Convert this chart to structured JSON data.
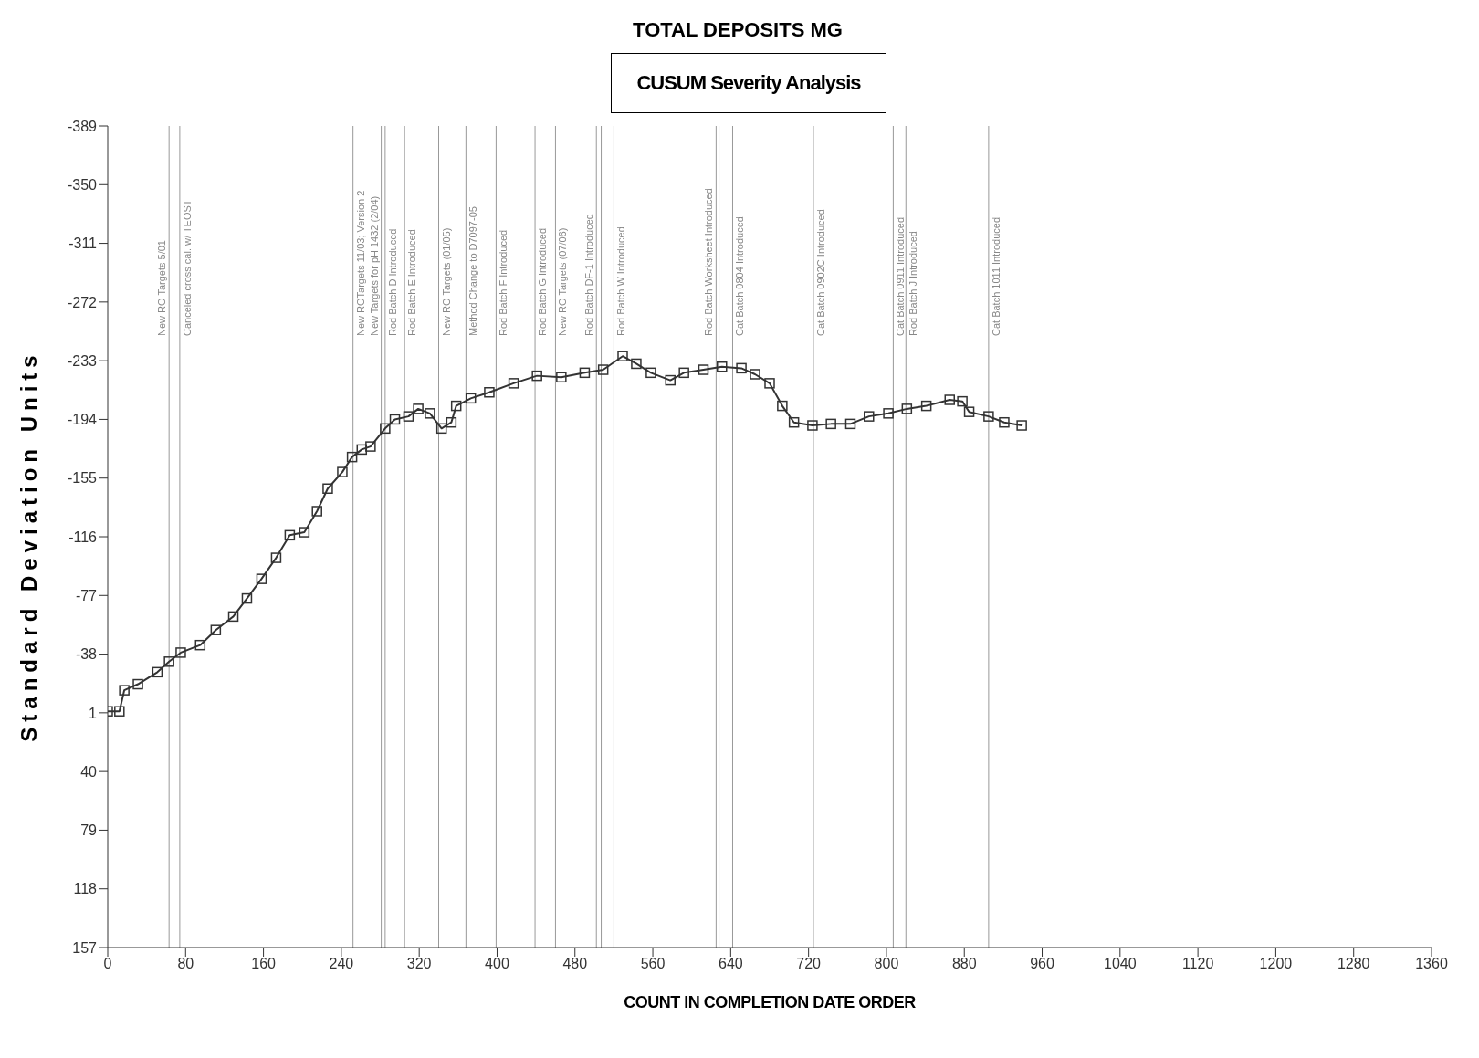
{
  "chart_data": {
    "type": "line",
    "title": "TOTAL DEPOSITS MG",
    "xlabel": "COUNT IN COMPLETION DATE ORDER",
    "ylabel": "Standard Deviation Units",
    "annotations": [
      "CUSUM Severity Analysis"
    ],
    "x": [
      0,
      12,
      17,
      31,
      51,
      63,
      75,
      95,
      111,
      129,
      143,
      158,
      173,
      187,
      202,
      215,
      226,
      241,
      251,
      261,
      270,
      285,
      295,
      309,
      319,
      331,
      343,
      353,
      358,
      373,
      392,
      417,
      441,
      466,
      490,
      509,
      529,
      543,
      558,
      578,
      592,
      612,
      631,
      651,
      665,
      680,
      693,
      705,
      724,
      743,
      763,
      782,
      802,
      821,
      841,
      865,
      878,
      885,
      905,
      921,
      939
    ],
    "series": [
      {
        "color": "#333333",
        "values": [
          0,
          0,
          -14,
          -18,
          -26,
          -33,
          -39,
          -44,
          -54,
          -63,
          -75,
          -88,
          -102,
          -117,
          -119,
          -133,
          -148,
          -159,
          -169,
          -174,
          -176,
          -188,
          -194,
          -196,
          -201,
          -198,
          -188,
          -192,
          -203,
          -208,
          -212,
          -218,
          -223,
          -222,
          -225,
          -227,
          -236,
          -231,
          -225,
          -220,
          -225,
          -227,
          -229,
          -228,
          -224,
          -218,
          -203,
          -192,
          -190,
          -191,
          -191,
          -196,
          -198,
          -201,
          -203,
          -207,
          -206,
          -199,
          -196,
          -192,
          -190
        ]
      }
    ],
    "xlim": [
      0,
      1360
    ],
    "xticks": [
      0,
      80,
      160,
      240,
      320,
      400,
      480,
      560,
      640,
      720,
      800,
      880,
      960,
      1040,
      1120,
      1200,
      1280,
      1360
    ],
    "ylim": [
      157,
      -389
    ],
    "yticks": [
      -389,
      -350,
      -311,
      -272,
      -233,
      -194,
      -155,
      -116,
      -77,
      -38,
      1,
      40,
      79,
      118,
      157
    ],
    "marker": "square",
    "line_style": "solid",
    "grid": false,
    "legend": false,
    "ref_lines": [
      {
        "axis": "x",
        "value": 63,
        "label": "New RO Targets 5/01",
        "color": "#999999"
      },
      {
        "axis": "x",
        "value": 74,
        "label": "Canceled cross cal. w/ TEOST",
        "color": "#999999"
      },
      {
        "axis": "x",
        "value": 252,
        "label": "New ROTargets 11/03; Version 2",
        "color": "#999999"
      },
      {
        "axis": "x",
        "value": 281,
        "label": "New Targets for pH 1432 (2/04)",
        "color": "#999999"
      },
      {
        "axis": "x",
        "value": 285,
        "label": "Rod Batch D Introduced",
        "color": "#999999"
      },
      {
        "axis": "x",
        "value": 305,
        "label": "Rod Batch E Introduced",
        "color": "#999999"
      },
      {
        "axis": "x",
        "value": 340,
        "label": "New RO Targets (01/05)",
        "color": "#999999"
      },
      {
        "axis": "x",
        "value": 368,
        "label": "Method Change to D7097-05",
        "color": "#999999"
      },
      {
        "axis": "x",
        "value": 399,
        "label": "Rod Batch F Introduced",
        "color": "#999999"
      },
      {
        "axis": "x",
        "value": 439,
        "label": "Rod Batch G Introduced",
        "color": "#999999"
      },
      {
        "axis": "x",
        "value": 460,
        "label": "New RO Targets (07/06)",
        "color": "#999999"
      },
      {
        "axis": "x",
        "value": 502,
        "label": "Rod Batch DF-1 Introduced",
        "color": "#999999"
      },
      {
        "axis": "x",
        "value": 507,
        "color": "#999999"
      },
      {
        "axis": "x",
        "value": 520,
        "label": "Rod Batch W Introduced",
        "color": "#999999"
      },
      {
        "axis": "x",
        "value": 625,
        "label": "Rod Batch Worksheet Introduced",
        "color": "#999999"
      },
      {
        "axis": "x",
        "value": 628,
        "color": "#999999"
      },
      {
        "axis": "x",
        "value": 642,
        "label": "Cat Batch 0804 Introduced",
        "color": "#999999"
      },
      {
        "axis": "x",
        "value": 725,
        "label": "Cat Batch 0902C Introduced",
        "color": "#999999"
      },
      {
        "axis": "x",
        "value": 807,
        "label": "Cat Batch 0911 Introduced",
        "color": "#999999"
      },
      {
        "axis": "x",
        "value": 820,
        "label": "Rod Batch J Introduced",
        "color": "#999999"
      },
      {
        "axis": "x",
        "value": 905,
        "label": "Cat Batch 1011 Introduced",
        "color": "#999999"
      }
    ]
  }
}
